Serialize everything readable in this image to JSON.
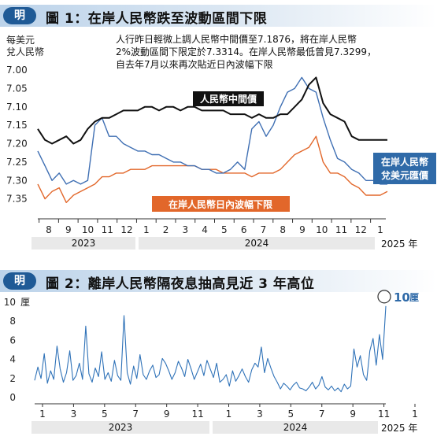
{
  "chart_data": [
    {
      "type": "line",
      "figure_label": "圖 1",
      "title": "在岸人民幣跌至波動區間下限",
      "badge": "明",
      "ylabel": "每美元\n兌人民幣",
      "ylabel_line1": "每美元",
      "ylabel_line2": "兌人民幣",
      "ylim": [
        7.0,
        7.37
      ],
      "y_reversed": true,
      "yticks": [
        "7.00",
        "7.05",
        "7.10",
        "7.15",
        "7.20",
        "7.25",
        "7.30",
        "7.35"
      ],
      "month_ticks": [
        "8",
        "9",
        "10",
        "11",
        "12",
        "1",
        "2",
        "3",
        "4",
        "5",
        "6",
        "7",
        "8",
        "9",
        "10",
        "11",
        "12",
        "1"
      ],
      "years": [
        "2023",
        "2024",
        "2025",
        "年"
      ],
      "annotation": [
        "人行昨日輕微上調人民幣中間價至7.1876，將在岸人民幣",
        "2%波動區間下限定於7.3314。在岸人民幣最低曾見7.3299，",
        "自去年7月以來再次貼近日內波幅下限"
      ],
      "series": [
        {
          "name": "人民幣中間價",
          "color": "#111111",
          "values": [
            7.16,
            7.19,
            7.2,
            7.19,
            7.18,
            7.2,
            7.19,
            7.16,
            7.14,
            7.13,
            7.13,
            7.12,
            7.11,
            7.11,
            7.11,
            7.1,
            7.1,
            7.11,
            7.1,
            7.1,
            7.11,
            7.1,
            7.1,
            7.11,
            7.11,
            7.11,
            7.11,
            7.12,
            7.12,
            7.12,
            7.13,
            7.12,
            7.13,
            7.13,
            7.12,
            7.12,
            7.1,
            7.08,
            7.04,
            7.02,
            7.09,
            7.12,
            7.13,
            7.14,
            7.18,
            7.19,
            7.19,
            7.19,
            7.19,
            7.19
          ]
        },
        {
          "name": "在岸人民幣兌美元匯價",
          "color": "#3f6fb3",
          "values": [
            7.22,
            7.26,
            7.3,
            7.28,
            7.31,
            7.3,
            7.31,
            7.3,
            7.15,
            7.13,
            7.18,
            7.18,
            7.2,
            7.21,
            7.22,
            7.22,
            7.23,
            7.23,
            7.24,
            7.25,
            7.25,
            7.26,
            7.26,
            7.27,
            7.27,
            7.28,
            7.28,
            7.27,
            7.25,
            7.27,
            7.16,
            7.14,
            7.18,
            7.15,
            7.1,
            7.06,
            7.05,
            7.02,
            7.05,
            7.06,
            7.13,
            7.19,
            7.24,
            7.25,
            7.27,
            7.28,
            7.3,
            7.3,
            7.31,
            7.31
          ]
        },
        {
          "name": "在岸人民幣日內波幅下限",
          "color": "#e2672a",
          "values": [
            7.31,
            7.35,
            7.33,
            7.32,
            7.36,
            7.34,
            7.33,
            7.32,
            7.31,
            7.29,
            7.29,
            7.28,
            7.28,
            7.27,
            7.27,
            7.27,
            7.26,
            7.26,
            7.26,
            7.26,
            7.26,
            7.26,
            7.26,
            7.27,
            7.27,
            7.27,
            7.28,
            7.28,
            7.28,
            7.28,
            7.29,
            7.28,
            7.28,
            7.28,
            7.27,
            7.25,
            7.23,
            7.22,
            7.21,
            7.18,
            7.25,
            7.28,
            7.28,
            7.29,
            7.31,
            7.32,
            7.34,
            7.34,
            7.34,
            7.33
          ]
        }
      ]
    },
    {
      "type": "line",
      "figure_label": "圖 2",
      "title": "離岸人民幣隔夜息抽高見近 3 年高位",
      "badge": "明",
      "ylim": [
        0,
        10
      ],
      "unit": "厘",
      "yticks": [
        "10",
        "8",
        "6",
        "4",
        "2",
        "0"
      ],
      "month_ticks": [
        "1",
        "3",
        "5",
        "7",
        "9",
        "11",
        "1",
        "3",
        "5",
        "7",
        "9",
        "11",
        "1"
      ],
      "years": [
        "2023",
        "2024",
        "2025",
        "年"
      ],
      "peak_label": "10",
      "peak_unit": "厘",
      "series": [
        {
          "name": "離岸人民幣隔夜拆息",
          "color": "#2f72b8",
          "values": [
            1.8,
            3.2,
            2.0,
            4.6,
            1.5,
            2.8,
            1.9,
            5.4,
            3.0,
            1.6,
            2.6,
            4.9,
            1.8,
            2.3,
            3.6,
            1.9,
            7.5,
            2.5,
            1.6,
            3.1,
            2.2,
            4.8,
            1.9,
            2.6,
            1.7,
            3.9,
            2.3,
            1.8,
            8.6,
            2.6,
            1.4,
            3.3,
            2.0,
            4.5,
            2.4,
            1.9,
            2.8,
            3.4,
            2.1,
            2.4,
            4.1,
            3.6,
            2.8,
            1.9,
            2.6,
            3.8,
            3.1,
            2.2,
            4.0,
            3.0,
            1.9,
            2.7,
            3.5,
            2.3,
            3.9,
            3.0,
            2.1,
            3.6,
            1.6,
            1.9,
            2.4,
            1.2,
            2.8,
            1.7,
            2.3,
            3.0,
            2.2,
            1.6,
            2.9,
            3.6,
            3.2,
            5.3,
            2.6,
            4.1,
            3.1,
            2.2,
            1.6,
            0.9,
            1.5,
            1.2,
            0.8,
            1.3,
            1.6,
            1.0,
            0.9,
            0.7,
            1.1,
            1.6,
            0.9,
            1.3,
            2.2,
            1.1,
            0.8,
            1.2,
            0.7,
            1.0,
            0.6,
            1.4,
            0.9,
            1.2,
            5.1,
            3.2,
            4.4,
            2.4,
            1.8,
            4.9,
            6.2,
            3.4,
            6.6,
            4.0,
            9.6
          ]
        }
      ]
    }
  ],
  "chart1_labels": {
    "midpoint_label": "人民幣中間價",
    "onshore_label_line1": "在岸人民幣",
    "onshore_label_line2": "兌美元匯價",
    "lower_band_label": "在岸人民幣日內波幅下限"
  }
}
